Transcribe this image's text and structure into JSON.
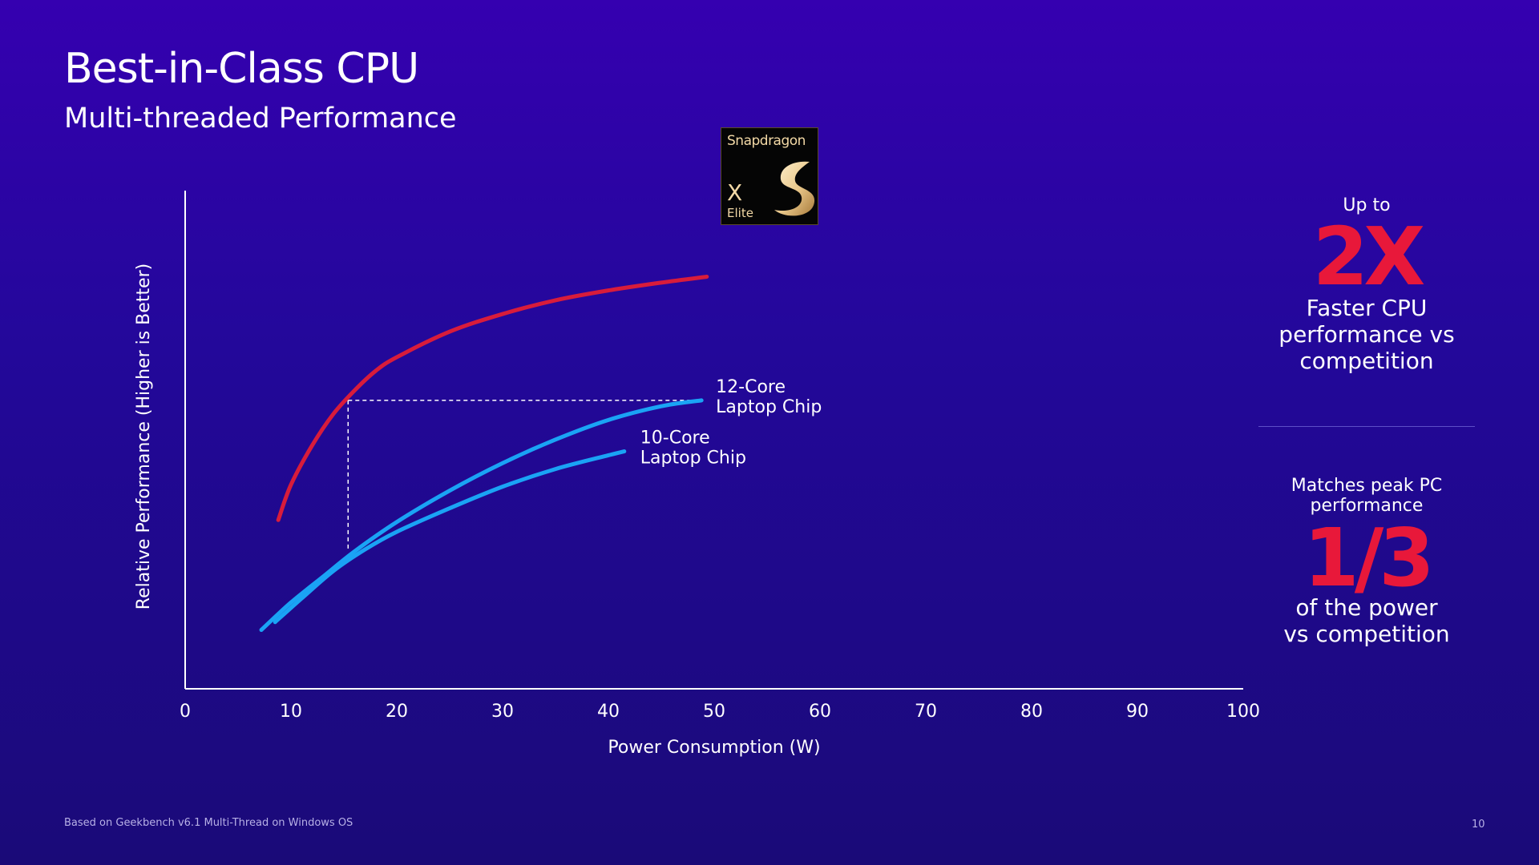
{
  "slide": {
    "title": "Best-in-Class CPU",
    "subtitle": "Multi-threaded Performance",
    "footnote": "Based on Geekbench v6.1 Multi-Thread on Windows OS",
    "page_number": "10"
  },
  "badge": {
    "brand": "Snapdragon",
    "mark": "X",
    "tier": "Elite",
    "logo_icon": "snapdragon-logo-icon"
  },
  "stats": {
    "first": {
      "prefix": "Up to",
      "big": "2X",
      "desc_lines": [
        "Faster CPU",
        "performance vs",
        "competition"
      ]
    },
    "second": {
      "prefix_lines": [
        "Matches peak PC",
        "performance"
      ],
      "big": "1/3",
      "desc_lines": [
        "of the power",
        "vs competition"
      ]
    }
  },
  "colors": {
    "snapdragon_series": "#d81c3b",
    "competitor_series": "#1aa3f5",
    "highlight_number": "#e8183a",
    "badge_gold": "#f3d9a6"
  },
  "chart_data": {
    "type": "line",
    "title": "",
    "xlabel": "Power Consumption (W)",
    "ylabel": "Relative Performance  (Higher is Better)",
    "xlim": [
      0,
      100
    ],
    "xticks": [
      "0",
      "10",
      "20",
      "30",
      "40",
      "50",
      "60",
      "70",
      "80",
      "90",
      "100"
    ],
    "ylim": [
      0,
      100
    ],
    "y_values_relative": true,
    "grid": false,
    "series": [
      {
        "key": "snapdragon",
        "name": "",
        "color": "#d81c3b",
        "points": [
          [
            8.8,
            43
          ],
          [
            10,
            52
          ],
          [
            12,
            62
          ],
          [
            14,
            70
          ],
          [
            16,
            76
          ],
          [
            18,
            81
          ],
          [
            20,
            84.5
          ],
          [
            25,
            91
          ],
          [
            30,
            95.5
          ],
          [
            35,
            99
          ],
          [
            40,
            101.5
          ],
          [
            45,
            103.5
          ],
          [
            49.3,
            105
          ]
        ]
      },
      {
        "key": "core12",
        "name": "12-Core Laptop Chip",
        "label_lines": [
          "12-Core",
          "Laptop Chip"
        ],
        "color": "#1aa3f5",
        "points": [
          [
            7.2,
            15
          ],
          [
            10,
            22
          ],
          [
            13,
            28.5
          ],
          [
            16,
            35
          ],
          [
            20,
            42.5
          ],
          [
            25,
            50.5
          ],
          [
            30,
            57.5
          ],
          [
            35,
            63.5
          ],
          [
            40,
            68.5
          ],
          [
            45,
            72
          ],
          [
            48.8,
            73.5
          ]
        ]
      },
      {
        "key": "core10",
        "name": "10-Core Laptop Chip",
        "label_lines": [
          "10-Core",
          "Laptop Chip"
        ],
        "color": "#1aa3f5",
        "points": [
          [
            8.5,
            17
          ],
          [
            11,
            23
          ],
          [
            14,
            30
          ],
          [
            17,
            35.5
          ],
          [
            20,
            40
          ],
          [
            25,
            46
          ],
          [
            30,
            51.5
          ],
          [
            35,
            56
          ],
          [
            40,
            59.5
          ],
          [
            41.5,
            60.5
          ]
        ]
      }
    ],
    "annotations": [
      {
        "type": "dashed-reference",
        "x": 15.4,
        "y_top": 73.5,
        "y_bottom": 35,
        "x_end": 48.8
      }
    ]
  }
}
